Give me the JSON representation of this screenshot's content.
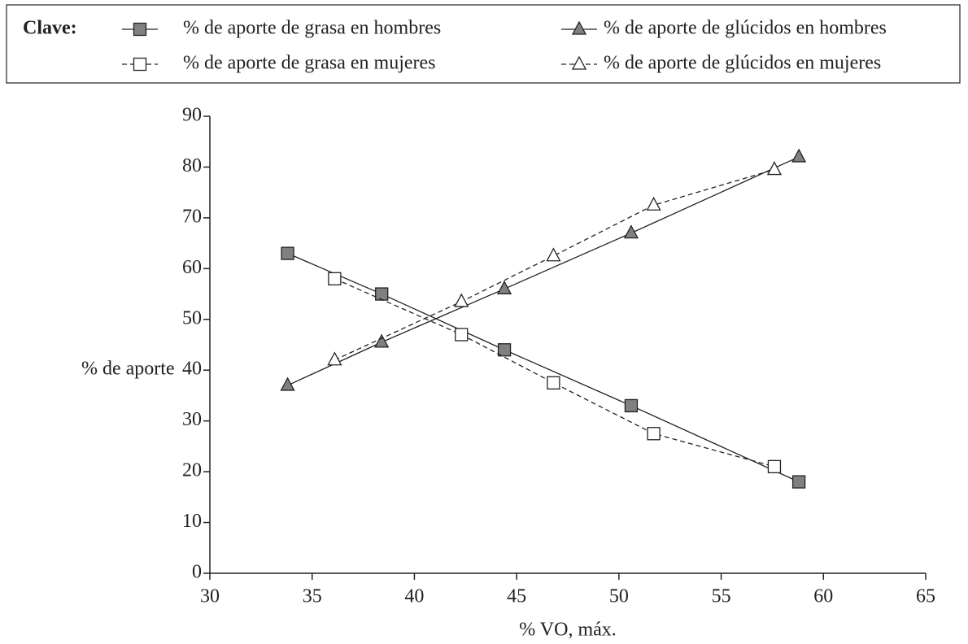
{
  "chart_data": {
    "type": "line",
    "legend_title": "Clave:",
    "x_label": "% VO, máx.",
    "y_label": "% de aporte",
    "xlim": [
      30,
      65
    ],
    "xticks": [
      30,
      35,
      40,
      45,
      50,
      55,
      60,
      65
    ],
    "ylim": [
      0,
      90
    ],
    "yticks": [
      0,
      10,
      20,
      30,
      40,
      50,
      60,
      70,
      80,
      90
    ],
    "series": [
      {
        "name": "% de aporte de grasa en hombres",
        "color": "#808080",
        "marker": "square",
        "dash": false,
        "x": [
          33.8,
          38.4,
          44.4,
          50.6,
          58.8
        ],
        "values": [
          63,
          55,
          44,
          33,
          18
        ]
      },
      {
        "name": "% de aporte de glúcidos en hombres",
        "color": "#808080",
        "marker": "triangle",
        "dash": false,
        "x": [
          33.8,
          38.4,
          44.4,
          50.6,
          58.8
        ],
        "values": [
          37,
          45.5,
          56,
          67,
          82
        ]
      },
      {
        "name": "% de aporte de grasa en mujeres",
        "color": "#ffffff",
        "marker": "square",
        "dash": true,
        "x": [
          36.1,
          42.3,
          46.8,
          51.7,
          57.6
        ],
        "values": [
          58,
          47,
          37.5,
          27.5,
          21
        ]
      },
      {
        "name": "% de aporte de glúcidos en mujeres",
        "color": "#ffffff",
        "marker": "triangle",
        "dash": true,
        "x": [
          36.1,
          42.3,
          46.8,
          51.7,
          57.6
        ],
        "values": [
          42,
          53.5,
          62.5,
          72.5,
          79.5
        ]
      }
    ]
  }
}
